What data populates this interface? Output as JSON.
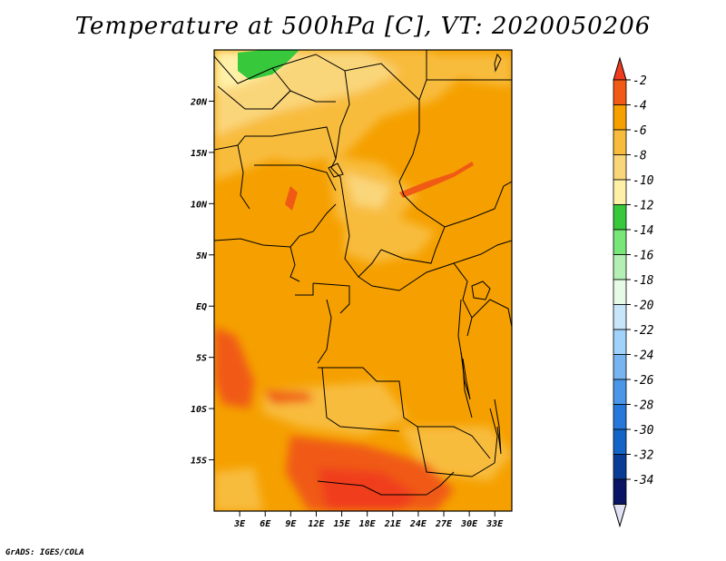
{
  "title": "Temperature at 500hPa [C], VT: 2020050206",
  "credit": "GrADS: IGES/COLA",
  "map": {
    "lat_range": [
      -20,
      25
    ],
    "lon_range": [
      0,
      35
    ],
    "lat_ticks": [
      {
        "value": 20,
        "label": "20N"
      },
      {
        "value": 15,
        "label": "15N"
      },
      {
        "value": 10,
        "label": "10N"
      },
      {
        "value": 5,
        "label": "5N"
      },
      {
        "value": 0,
        "label": "EQ"
      },
      {
        "value": -5,
        "label": "5S"
      },
      {
        "value": -10,
        "label": "10S"
      },
      {
        "value": -15,
        "label": "15S"
      }
    ],
    "lon_ticks": [
      {
        "value": 3,
        "label": "3E"
      },
      {
        "value": 6,
        "label": "6E"
      },
      {
        "value": 9,
        "label": "9E"
      },
      {
        "value": 12,
        "label": "12E"
      },
      {
        "value": 15,
        "label": "15E"
      },
      {
        "value": 18,
        "label": "18E"
      },
      {
        "value": 21,
        "label": "21E"
      },
      {
        "value": 24,
        "label": "24E"
      },
      {
        "value": 27,
        "label": "27E"
      },
      {
        "value": 30,
        "label": "30E"
      },
      {
        "value": 33,
        "label": "33E"
      }
    ]
  },
  "colorbar": {
    "levels": [
      "-2",
      "-4",
      "-6",
      "-8",
      "-10",
      "-12",
      "-14",
      "-16",
      "-18",
      "-20",
      "-22",
      "-24",
      "-26",
      "-28",
      "-30",
      "-32",
      "-34"
    ],
    "colors": [
      "#f05a14",
      "#f5a000",
      "#f8bc3c",
      "#fad67a",
      "#fff0a8",
      "#37c83c",
      "#78e678",
      "#b4f0b4",
      "#e6fae6",
      "#c8e6fa",
      "#a0d2fa",
      "#78b4f0",
      "#4b96e6",
      "#2878dc",
      "#1464c8",
      "#0a3c96",
      "#0a1464"
    ],
    "top_color": "#f03c1e",
    "bottom_color": "#e1e1f5"
  }
}
